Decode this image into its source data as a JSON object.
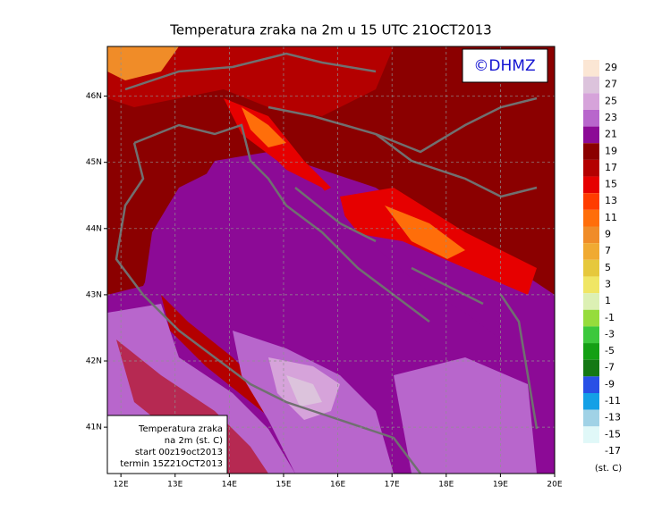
{
  "title": "Temperatura zraka na 2m u 15 UTC 21OCT2013",
  "logo": "©DHMZ",
  "map": {
    "xlim": [
      11.75,
      20
    ],
    "ylim": [
      40.3,
      46.75
    ],
    "xticks": [
      {
        "value": 12,
        "label": "12E"
      },
      {
        "value": 13,
        "label": "13E"
      },
      {
        "value": 14,
        "label": "14E"
      },
      {
        "value": 15,
        "label": "15E"
      },
      {
        "value": 16,
        "label": "16E"
      },
      {
        "value": 17,
        "label": "17E"
      },
      {
        "value": 18,
        "label": "18E"
      },
      {
        "value": 19,
        "label": "19E"
      },
      {
        "value": 20,
        "label": "20E"
      }
    ],
    "yticks": [
      {
        "value": 41,
        "label": "41N"
      },
      {
        "value": 42,
        "label": "42N"
      },
      {
        "value": 43,
        "label": "43N"
      },
      {
        "value": 44,
        "label": "44N"
      },
      {
        "value": 45,
        "label": "45N"
      },
      {
        "value": 46,
        "label": "46N"
      }
    ],
    "grid": true
  },
  "colorbar": {
    "levels": [
      29,
      27,
      25,
      23,
      21,
      19,
      17,
      15,
      13,
      11,
      9,
      7,
      5,
      3,
      1,
      -1,
      -3,
      -5,
      -7,
      -9,
      -11,
      -13,
      -15,
      -17
    ],
    "colors": [
      "#fbe6d4",
      "#dcc3dc",
      "#d6a3da",
      "#b866cc",
      "#8c0a96",
      "#8b0000",
      "#b40000",
      "#e60000",
      "#ff3c00",
      "#ff6e0a",
      "#f08c28",
      "#f0aa32",
      "#e6c83c",
      "#f0e664",
      "#dcf0b4",
      "#96dc3c",
      "#3cc83c",
      "#14a014",
      "#147814",
      "#2850e6",
      "#14a0e6",
      "#a0d2e6",
      "#e0f8f8"
    ],
    "unit": "(st. C)"
  },
  "info_box": [
    "Temperatura zraka",
    "na 2m (st. C)",
    "start 00z19oct2013",
    "termin 15Z21OCT2013"
  ]
}
